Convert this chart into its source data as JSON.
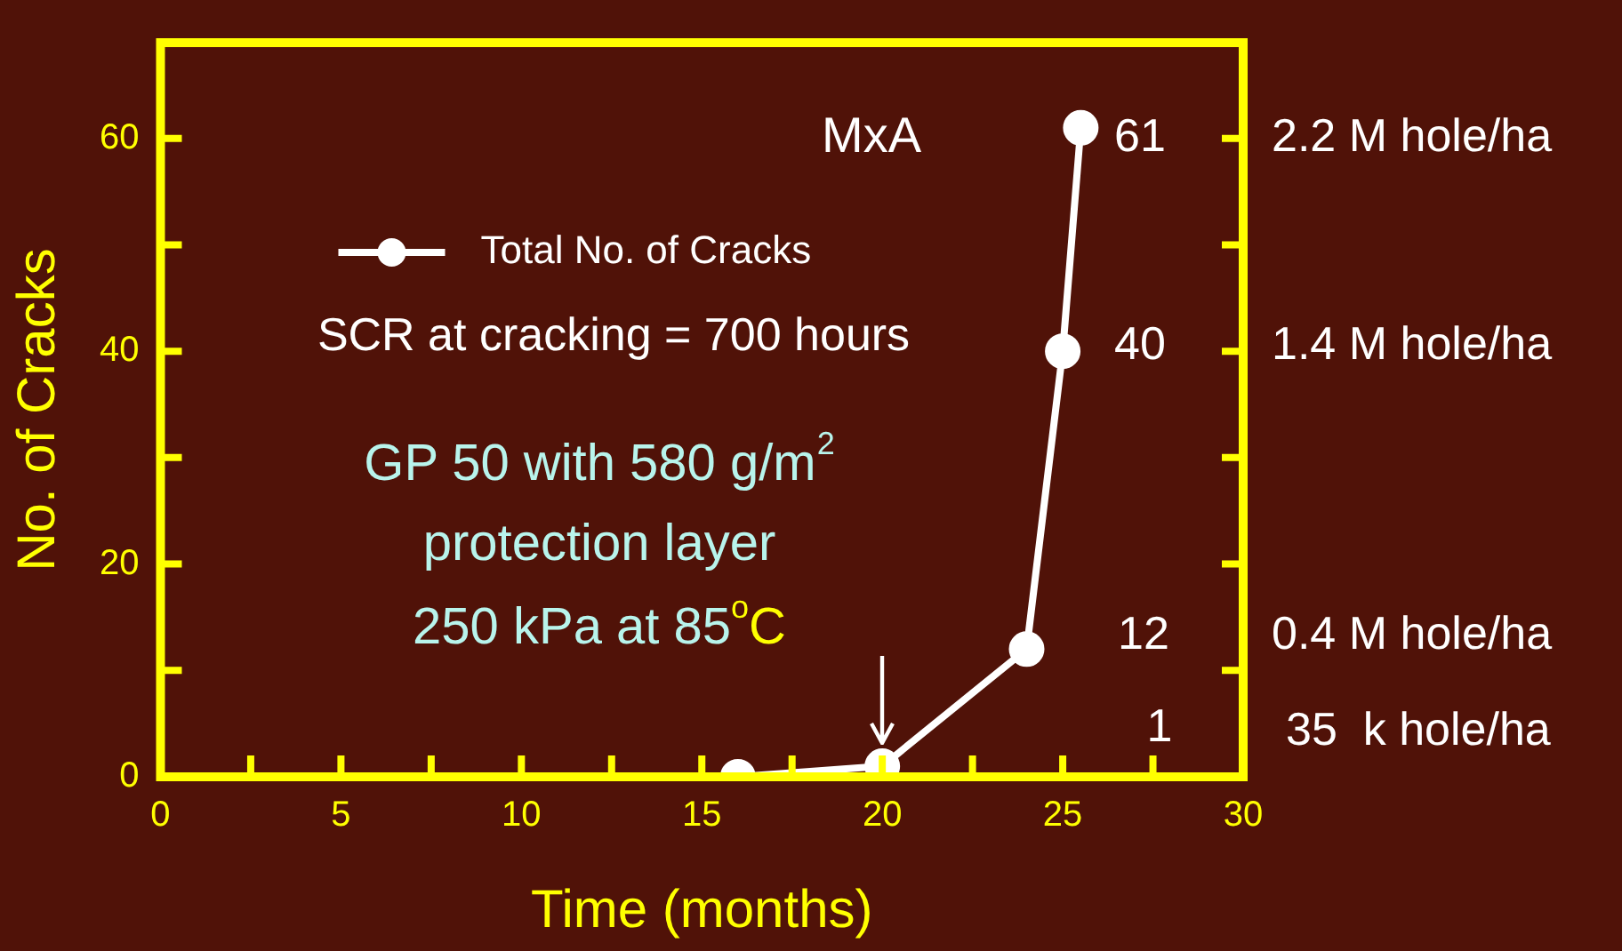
{
  "chart_data": {
    "type": "line",
    "xlabel": "Time (months)",
    "ylabel": "No. of Cracks",
    "x": [
      16,
      20,
      24,
      25,
      25.5
    ],
    "series": [
      {
        "name": "Total No. of Cracks",
        "color": "#ffffff",
        "values": [
          0,
          1,
          12,
          40,
          61
        ]
      }
    ],
    "xlim": [
      0,
      30
    ],
    "xticks": [
      0,
      {
        "value": 2.5,
        "label": null
      },
      5,
      {
        "value": 7.5,
        "label": null
      },
      10,
      {
        "value": 12.5,
        "label": null
      },
      15,
      {
        "value": 17.5,
        "label": null
      },
      20,
      {
        "value": 22.5,
        "label": null
      },
      25,
      {
        "value": 27.5,
        "label": null
      },
      30
    ],
    "ylim": [
      0,
      69
    ],
    "yticks": [
      0,
      {
        "value": 10,
        "label": null
      },
      20,
      {
        "value": 30,
        "label": null
      },
      40,
      {
        "value": 50,
        "label": null
      },
      60
    ],
    "marker": "circle",
    "legend": "top",
    "annotations": [
      "MxA",
      "SCR at cracking = 700 hours",
      "GP 50 with 580 g/m$^{2}$",
      "protection layer",
      "250 kPa at 85$^{o}$C",
      "61",
      "40",
      "12",
      "1",
      "2.2 M hole/ha",
      "1.4 M hole/ha",
      "0.4 M hole/ha",
      "35  k hole/ha"
    ]
  }
}
